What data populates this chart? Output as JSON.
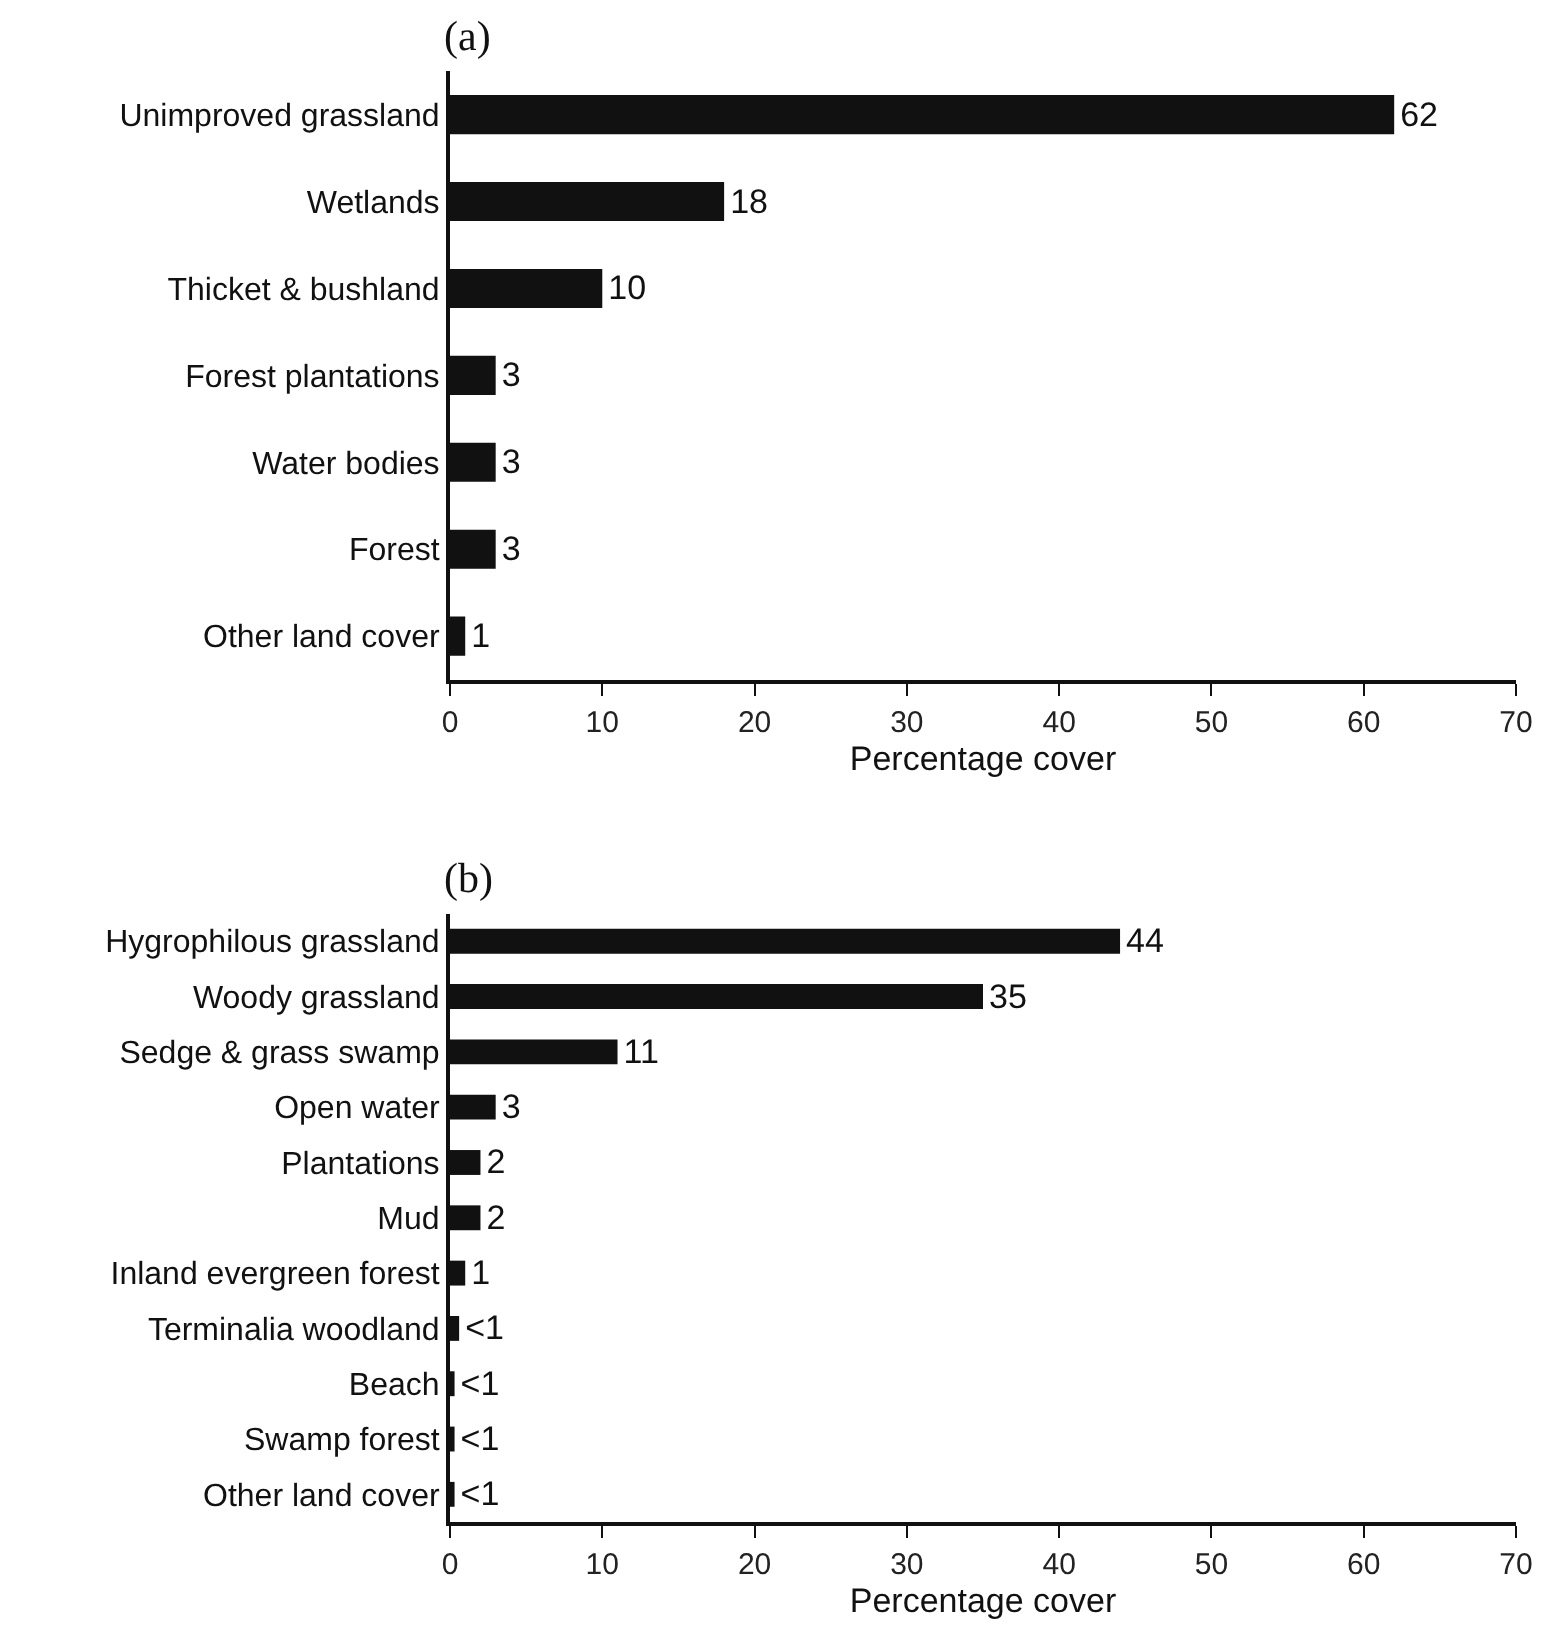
{
  "chart_data": [
    {
      "type": "bar",
      "title": "(a)",
      "orientation": "horizontal",
      "xlabel": "Percentage cover",
      "categories": [
        "Unimproved grassland",
        "Wetlands",
        "Thicket & bushland",
        "Forest plantations",
        "Water bodies",
        "Forest",
        "Other land cover"
      ],
      "values": [
        62,
        18,
        10,
        3,
        3,
        3,
        1
      ],
      "color": "#111111",
      "xlim": [
        0,
        70
      ],
      "xticks": [
        0,
        10,
        20,
        30,
        40,
        50,
        60,
        70
      ],
      "data_labels": true
    },
    {
      "type": "bar",
      "title": "(b)",
      "orientation": "horizontal",
      "xlabel": "Percentage cover",
      "categories": [
        "Hygrophilous grassland",
        "Woody grassland",
        "Sedge & grass swamp",
        "Open water",
        "Plantations",
        "Mud",
        "Inland evergreen forest",
        "Terminalia woodland",
        "Beach",
        "Swamp forest",
        "Other land cover"
      ],
      "values": [
        44,
        35,
        11,
        3,
        2,
        2,
        1,
        0.6,
        0.3,
        0.3,
        0.3
      ],
      "value_labels": [
        "44",
        "35",
        "11",
        "3",
        "2",
        "2",
        "1",
        "<1",
        "<1",
        "<1",
        "<1"
      ],
      "color": "#111111",
      "xlim": [
        0,
        70
      ],
      "xticks": [
        0,
        10,
        20,
        30,
        40,
        50,
        60,
        70
      ]
    }
  ]
}
